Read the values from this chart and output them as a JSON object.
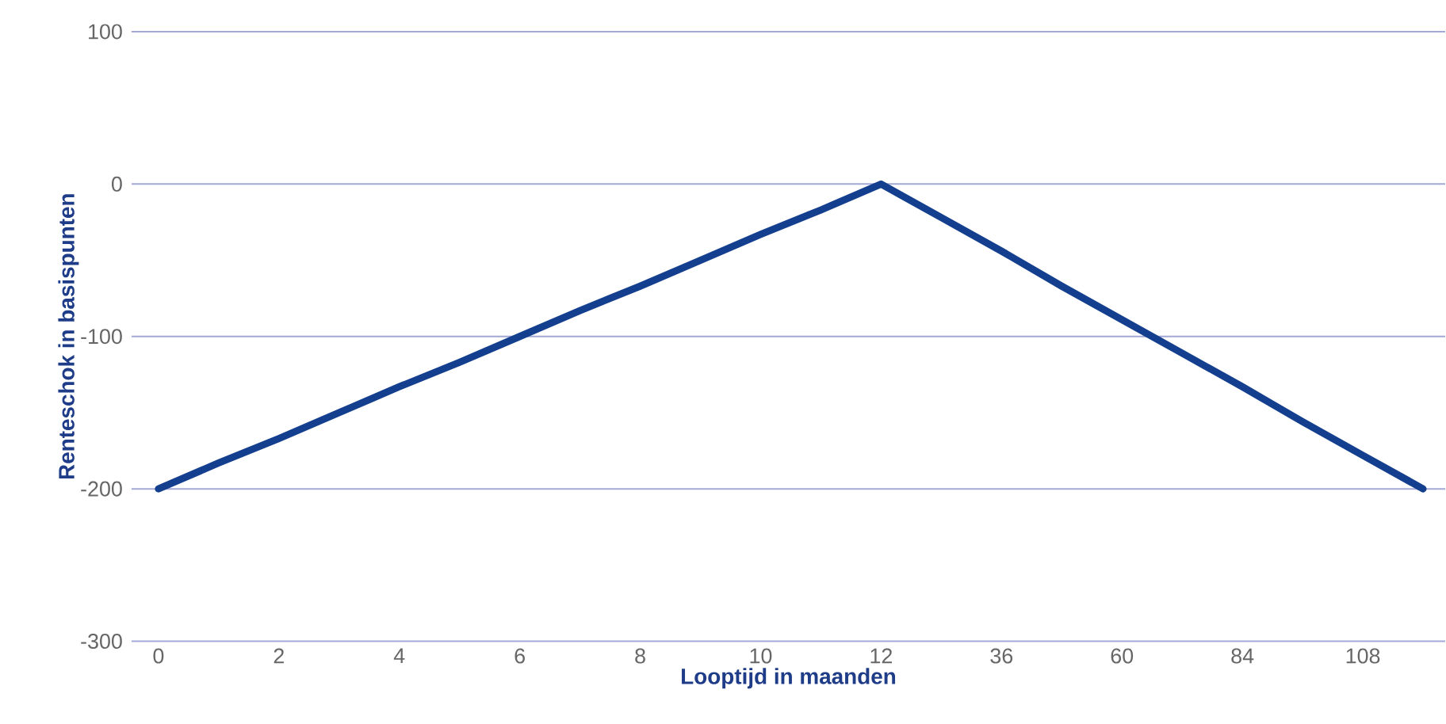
{
  "chart_data": {
    "type": "line",
    "xlabel": "Looptijd in maanden",
    "ylabel": "Renteschok in basispunten",
    "categories": [
      "0",
      null,
      "2",
      null,
      "4",
      null,
      "6",
      null,
      "8",
      null,
      "10",
      null,
      "12",
      null,
      "36",
      null,
      "60",
      null,
      "84",
      null,
      "108",
      null
    ],
    "series": [
      {
        "color": "#143f8f",
        "values": [
          -200,
          -183,
          -167,
          -150,
          -133,
          -117,
          -100,
          -83,
          -67,
          -50,
          -33,
          -17,
          0,
          -22,
          -44,
          -67,
          -89,
          -111,
          -133,
          -156,
          -178,
          -200
        ]
      }
    ],
    "ylim": [
      -300,
      100
    ],
    "yticks": [
      -300,
      -200,
      -100,
      0,
      100
    ],
    "grid": "y",
    "marker": "none",
    "line_style": "solid"
  }
}
